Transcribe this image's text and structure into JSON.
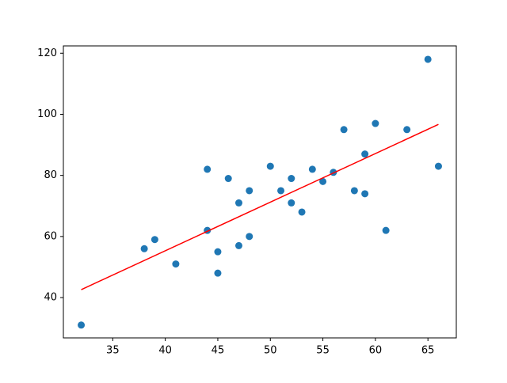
{
  "chart_data": {
    "type": "scatter",
    "series": [
      {
        "type": "scatter",
        "color": "#1f77b4",
        "x": [
          32,
          38,
          39,
          41,
          44,
          44,
          45,
          45,
          46,
          47,
          47,
          48,
          48,
          50,
          51,
          52,
          52,
          53,
          54,
          55,
          56,
          57,
          58,
          59,
          59,
          60,
          61,
          63,
          65,
          66
        ],
        "values": [
          31,
          56,
          59,
          51,
          82,
          62,
          55,
          48,
          79,
          71,
          57,
          75,
          60,
          83,
          75,
          79,
          71,
          68,
          82,
          78,
          81,
          95,
          75,
          87,
          74,
          97,
          62,
          95,
          118,
          83
        ]
      },
      {
        "type": "line",
        "color": "#ff0000",
        "x": [
          32,
          66
        ],
        "values": [
          42.6,
          96.7
        ]
      }
    ],
    "xlim": [
      30.3,
      67.7
    ],
    "ylim": [
      26.8,
      122.4
    ],
    "xticks": [
      35,
      40,
      45,
      50,
      55,
      60,
      65
    ],
    "yticks": [
      40,
      60,
      80,
      100,
      120
    ],
    "grid": false
  }
}
